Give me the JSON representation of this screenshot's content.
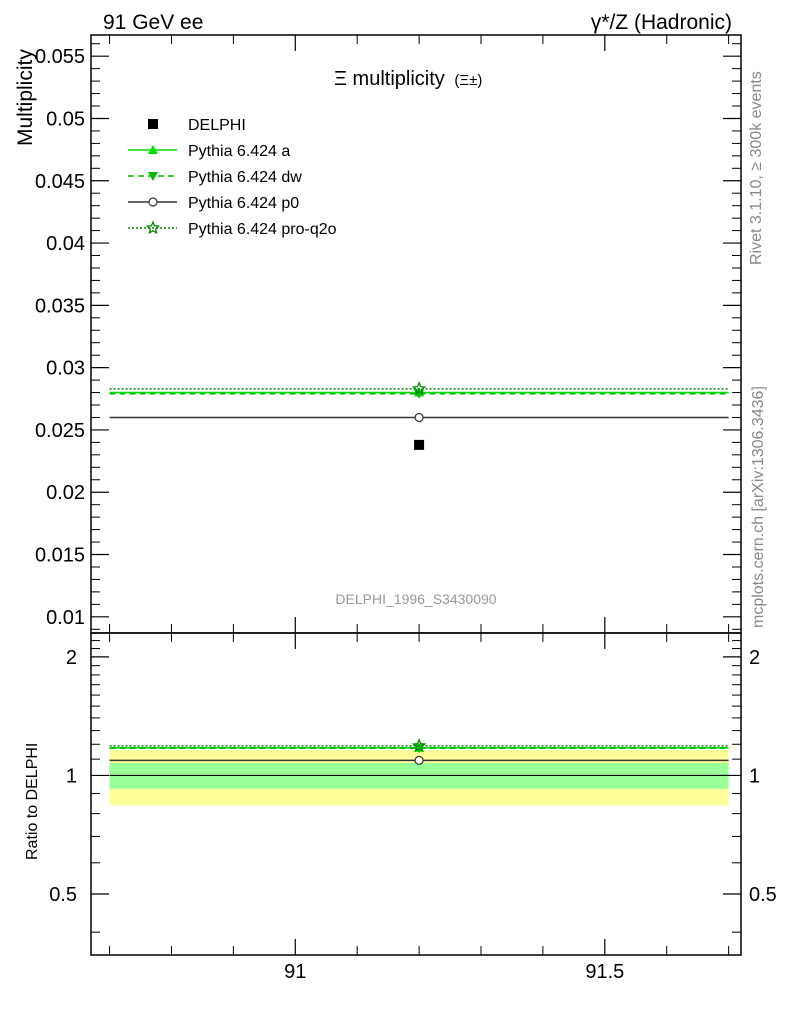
{
  "header": {
    "left": "91 GeV ee",
    "right": "γ*/Z (Hadronic)"
  },
  "side_labels": {
    "rivet": "Rivet 3.1.10, ≥ 300k events",
    "mcplots": "mcplots.cern.ch [arXiv:1306.3436]"
  },
  "chart_data": {
    "type": "scatter",
    "title": "Ξ multiplicity",
    "title_sub": "(Ξ±)",
    "ylabel": "Multiplicity",
    "ratio_ylabel": "Ratio to DELPHI",
    "analysis_label": "DELPHI_1996_S3430090",
    "xlim": [
      90.67,
      91.72
    ],
    "ylim": [
      0.0087,
      0.0567
    ],
    "ratio_ylim": [
      0.35,
      2.3
    ],
    "x_ticks": [
      91,
      91.5
    ],
    "x_tick_labels": [
      "91",
      "91.5"
    ],
    "y_ticks": [
      0.01,
      0.015,
      0.02,
      0.025,
      0.03,
      0.035,
      0.04,
      0.045,
      0.05,
      0.055
    ],
    "y_tick_labels": [
      "0.01",
      "0.015",
      "0.02",
      "0.025",
      "0.03",
      "0.035",
      "0.04",
      "0.045",
      "0.05",
      "0.055"
    ],
    "ratio_ticks": [
      0.5,
      1,
      2
    ],
    "ratio_tick_labels": [
      "0.5",
      "1",
      "2"
    ],
    "legend_position": "top-left",
    "bin": [
      90.7,
      91.7
    ],
    "data": {
      "name": "DELPHI",
      "x": 91.2,
      "y": 0.0238,
      "color": "#000000",
      "band_inner": [
        0.925,
        1.075
      ],
      "band_outer": [
        0.84,
        1.16
      ]
    },
    "series": [
      {
        "name": "Pythia 6.424 a",
        "y": 0.028,
        "ratio": 1.176,
        "color": "#00dd00",
        "dash": "",
        "marker": "triangle-up"
      },
      {
        "name": "Pythia 6.424 dw",
        "y": 0.0279,
        "ratio": 1.172,
        "color": "#00bb00",
        "dash": "6,4",
        "marker": "triangle-down"
      },
      {
        "name": "Pythia 6.424 p0",
        "y": 0.026,
        "ratio": 1.092,
        "color": "#333333",
        "dash": "",
        "marker": "circle-open"
      },
      {
        "name": "Pythia 6.424 pro-q2o",
        "y": 0.0283,
        "ratio": 1.189,
        "color": "#008800",
        "dash": "2,2",
        "marker": "star-open"
      }
    ],
    "colors": {
      "band_inner": "#99ff99",
      "band_outer": "#ffff99"
    }
  }
}
